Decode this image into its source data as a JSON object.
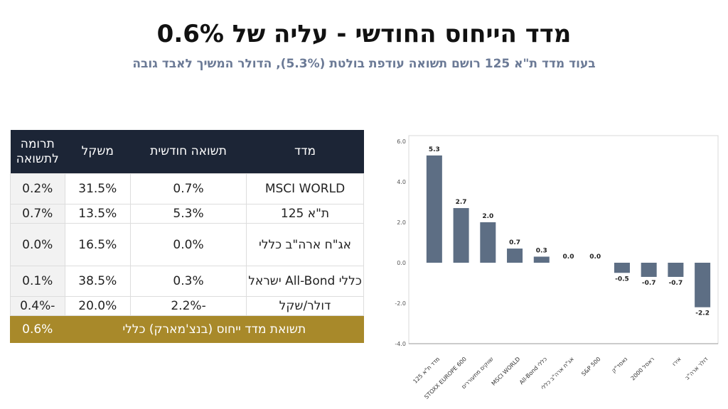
{
  "title": "מדד הייחוס החודשי - עליה של 0.6%",
  "subtitle": "בעוד מדד ת\"א 125 רושם תשואה עודפת בולטת (5.3%), הדולר המשיך לאבד גובה",
  "table": {
    "headers": [
      "מדד",
      "תשואה חודשית",
      "משקל",
      "תרומה לתשואה"
    ],
    "rows": [
      [
        "MSCI WORLD",
        "0.7%",
        "31.5%",
        "0.2%"
      ],
      [
        "ת\"א 125",
        "5.3%",
        "13.5%",
        "0.7%"
      ],
      [
        "אג\"ח ארה\"ב כללי",
        "0.0%",
        "16.5%",
        "0.0%"
      ],
      [
        "כללי All-Bond ישראל",
        "0.3%",
        "38.5%",
        "0.1%"
      ],
      [
        "דולר/שקל",
        "-2.2%",
        "20.0%",
        "-0.4%"
      ]
    ],
    "total": {
      "label": "תשואת מדד ייחוס (בנצ'מארק) כללי",
      "value": "0.6%"
    }
  },
  "chart_data": {
    "type": "bar",
    "categories": [
      "מדד ת\"א 125",
      "STOXX EUROPE 600",
      "שווקים מתעוררים",
      "MSCI WORLD",
      "All-Bond כללי",
      "אג\"ח ארה\"ב כללי",
      "S&P 500",
      "נאסד\"ק",
      "ראסל 2000",
      "אירו",
      "דולר ארה\"ב"
    ],
    "values": [
      5.3,
      2.7,
      2.0,
      0.7,
      0.3,
      0.0,
      0.0,
      -0.5,
      -0.7,
      -0.7,
      -2.2
    ],
    "labels": [
      "5.3",
      "2.7",
      "2.0",
      "0.7",
      "0.3",
      "0.0",
      "0.0",
      "-0.5",
      "-0.7",
      "-0.7",
      "-2.2"
    ],
    "yticks": [
      "6.0",
      "4.0",
      "2.0",
      "0.0",
      "-2.0",
      "-4.0"
    ],
    "ylim": [
      -4,
      6
    ],
    "bar_color": "#5d6e84",
    "grid": false
  }
}
